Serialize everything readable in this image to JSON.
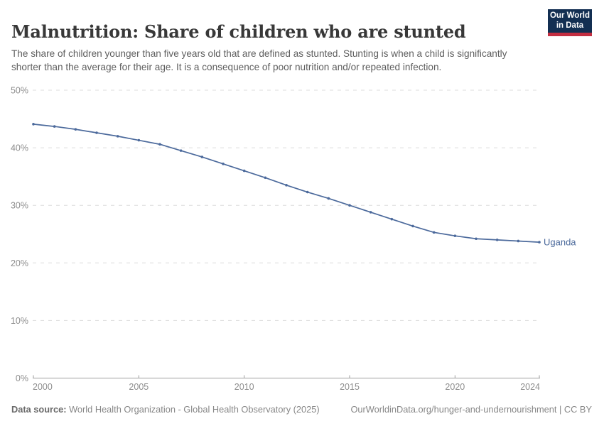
{
  "header": {
    "title": "Malnutrition: Share of children who are stunted",
    "subtitle": "The share of children younger than five years old that are defined as stunted. Stunting is when a child is significantly shorter than the average for their age. It is a consequence of poor nutrition and/or repeated infection.",
    "logo": {
      "line1": "Our World",
      "line2": "in Data"
    }
  },
  "chart_data": {
    "type": "line",
    "title": "Malnutrition: Share of children who are stunted",
    "x": [
      2000,
      2001,
      2002,
      2003,
      2004,
      2005,
      2006,
      2007,
      2008,
      2009,
      2010,
      2011,
      2012,
      2013,
      2014,
      2015,
      2016,
      2017,
      2018,
      2019,
      2020,
      2021,
      2022,
      2023,
      2024
    ],
    "series": [
      {
        "name": "Uganda",
        "color": "#4c6a9c",
        "values": [
          44.1,
          43.7,
          43.2,
          42.6,
          42.0,
          41.3,
          40.6,
          39.5,
          38.4,
          37.2,
          36.0,
          34.8,
          33.5,
          32.3,
          31.2,
          30.0,
          28.8,
          27.6,
          26.4,
          25.3,
          24.7,
          24.2,
          24.0,
          23.8,
          23.6
        ]
      }
    ],
    "xlabel": "",
    "ylabel": "",
    "ylim": [
      0,
      50
    ],
    "xlim": [
      2000,
      2024
    ],
    "y_ticks": [
      {
        "value": 0,
        "label": "0%"
      },
      {
        "value": 10,
        "label": "10%"
      },
      {
        "value": 20,
        "label": "20%"
      },
      {
        "value": 30,
        "label": "30%"
      },
      {
        "value": 40,
        "label": "40%"
      },
      {
        "value": 50,
        "label": "50%"
      }
    ],
    "x_ticks": [
      2000,
      2005,
      2010,
      2015,
      2020,
      2024
    ],
    "grid": "horizontal-dashed",
    "legend_position": "end-of-line-label",
    "end_label": "Uganda"
  },
  "footer": {
    "source_label": "Data source:",
    "source_text": " World Health Organization - Global Health Observatory (2025)",
    "link_text": "OurWorldinData.org/hunger-and-undernourishment | CC BY"
  },
  "colors": {
    "series": "#4c6a9c",
    "grid": "#dcdcdc",
    "axis_line": "#9e9e9e",
    "axis_text": "#8d8d8d",
    "logo_bg": "#132f52",
    "logo_stripe": "#c32e41"
  }
}
